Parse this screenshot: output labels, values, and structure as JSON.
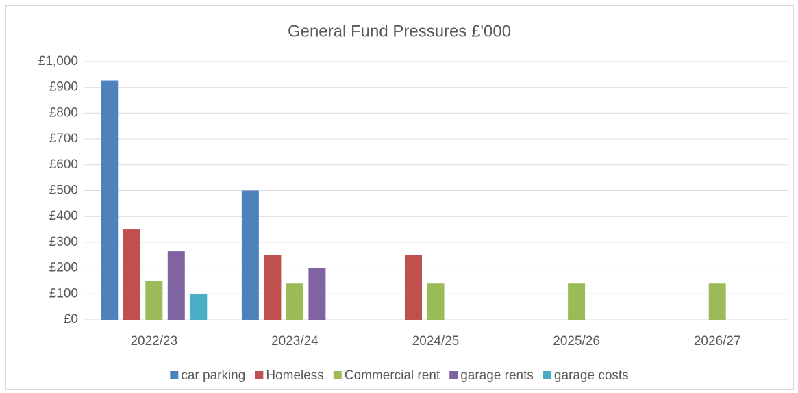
{
  "chart_data": {
    "type": "bar",
    "title": "General Fund Pressures £'000",
    "categories": [
      "2022/23",
      "2023/24",
      "2024/25",
      "2025/26",
      "2026/27"
    ],
    "series": [
      {
        "name": "car parking",
        "color": "#4f81bd",
        "values": [
          927,
          500,
          null,
          null,
          null
        ]
      },
      {
        "name": "Homeless",
        "color": "#c0504d",
        "values": [
          350,
          250,
          250,
          null,
          null
        ]
      },
      {
        "name": "Commercial rent",
        "color": "#9bbb59",
        "values": [
          150,
          140,
          140,
          140,
          140
        ]
      },
      {
        "name": "garage rents",
        "color": "#8064a2",
        "values": [
          265,
          200,
          null,
          null,
          null
        ]
      },
      {
        "name": "garage costs",
        "color": "#4bacc6",
        "values": [
          100,
          null,
          null,
          null,
          null
        ]
      }
    ],
    "ylim": [
      0,
      1000
    ],
    "yticks": [
      {
        "value": 0,
        "label": "£0"
      },
      {
        "value": 100,
        "label": "£100"
      },
      {
        "value": 200,
        "label": "£200"
      },
      {
        "value": 300,
        "label": "£300"
      },
      {
        "value": 400,
        "label": "£400"
      },
      {
        "value": 500,
        "label": "£500"
      },
      {
        "value": 600,
        "label": "£600"
      },
      {
        "value": 700,
        "label": "£700"
      },
      {
        "value": 800,
        "label": "£800"
      },
      {
        "value": 900,
        "label": "£900"
      },
      {
        "value": 1000,
        "label": "£1,000"
      }
    ],
    "grid": true,
    "legend": "bottom"
  }
}
